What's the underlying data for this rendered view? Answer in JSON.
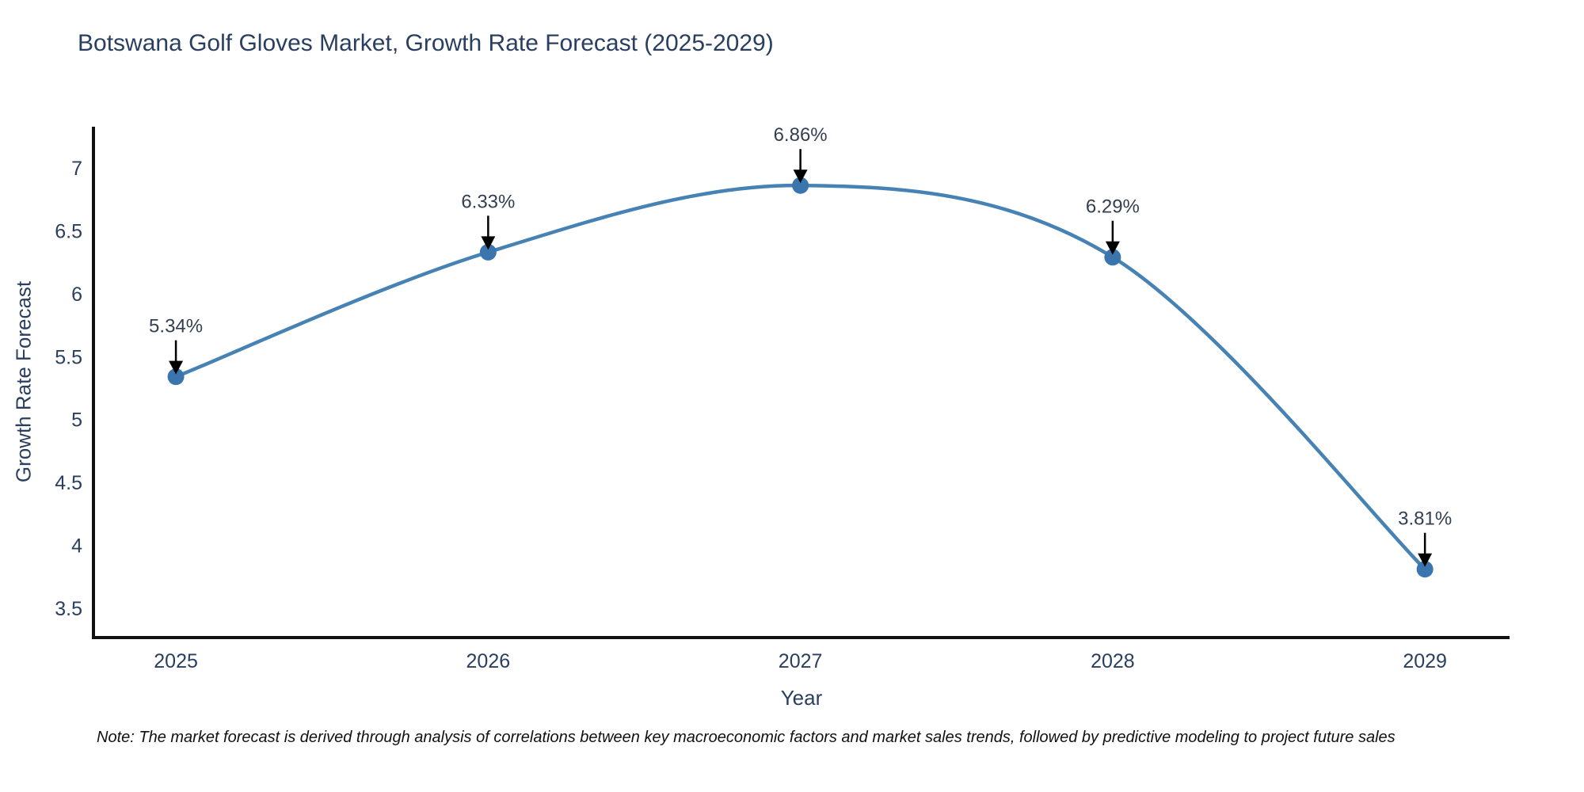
{
  "title": "Botswana Golf Gloves Market, Growth Rate Forecast (2025-2029)",
  "note": "Note: The market forecast is derived through analysis of correlations between key macroeconomic factors and market sales trends, followed by predictive modeling to project future sales",
  "chart_data": {
    "type": "line",
    "title": "Botswana Golf Gloves Market, Growth Rate Forecast (2025-2029)",
    "categories": [
      "2025",
      "2026",
      "2027",
      "2028",
      "2029"
    ],
    "x": [
      2025,
      2026,
      2027,
      2028,
      2029
    ],
    "values": [
      5.34,
      6.33,
      6.86,
      6.29,
      3.81
    ],
    "point_labels": [
      "5.34%",
      "6.33%",
      "6.86%",
      "6.29%",
      "3.81%"
    ],
    "xlabel": "Year",
    "ylabel": "Growth Rate Forecast",
    "yticks": [
      "3.5",
      "4",
      "4.5",
      "5",
      "5.5",
      "6",
      "6.5",
      "7"
    ],
    "ylim": [
      3.267,
      7.327
    ],
    "xlim": [
      2024.736,
      2029.271
    ],
    "grid": false,
    "legend": "none",
    "line_shape": "spline",
    "colors": {
      "line": "#4682b4",
      "marker": "#3a76ad",
      "axis": "#111111",
      "text": "#2a3f5f",
      "annotation": "#333f50",
      "annotation_arrow": "#000000",
      "background": "#ffffff"
    }
  }
}
